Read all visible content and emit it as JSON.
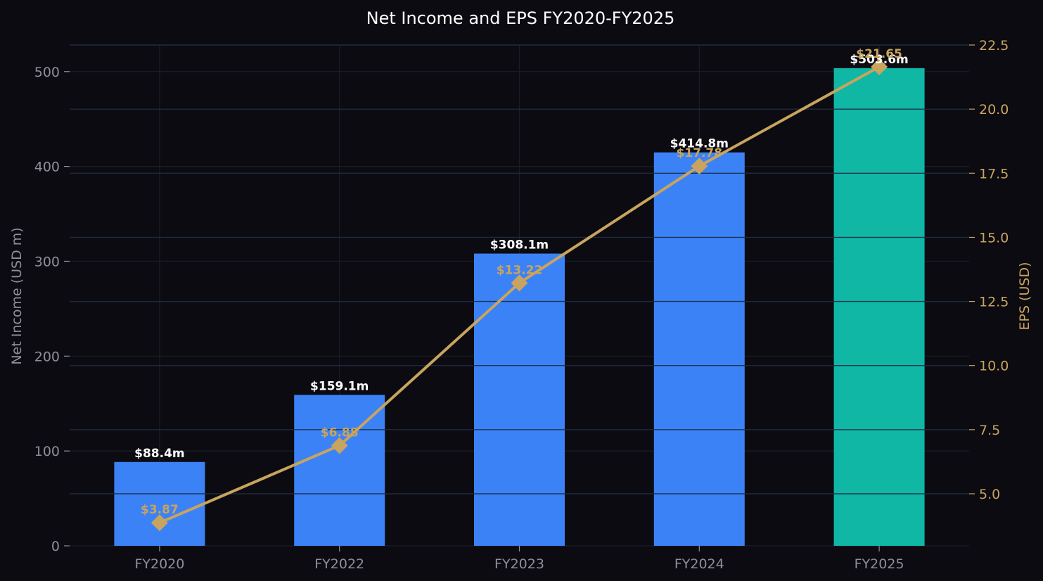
{
  "chart_data": {
    "type": "bar",
    "title": "Net Income and EPS FY2020-FY2025",
    "categories": [
      "FY2020",
      "FY2022",
      "FY2023",
      "FY2024",
      "FY2025"
    ],
    "series": [
      {
        "name": "",
        "axis": "left",
        "kind": "bar",
        "values": [
          88.4,
          159.1,
          308.1,
          414.8,
          503.6
        ],
        "labels": [
          "$88.4m",
          "$159.1m",
          "$308.1m",
          "$414.8m",
          "$503.6m"
        ]
      },
      {
        "name": "",
        "axis": "right",
        "kind": "line",
        "marker": "diamond",
        "values": [
          3.87,
          6.88,
          13.22,
          17.78,
          21.65
        ],
        "labels": [
          "$3.87",
          "$6.88",
          "$13.22",
          "$17.78",
          "$21.65"
        ]
      }
    ],
    "ylabel": "Net Income (USD m)",
    "y2label": "EPS (USD)",
    "ylim": [
      0,
      528
    ],
    "y2lim": [
      2.97,
      22.5
    ],
    "yticks": [
      0,
      100,
      200,
      300,
      400,
      500
    ],
    "y2ticks": [
      5.0,
      7.5,
      10.0,
      12.5,
      15.0,
      17.5,
      20.0,
      22.5
    ],
    "y2tick_labels": [
      "5.0",
      "7.5",
      "10.0",
      "12.5",
      "15.0",
      "17.5",
      "20.0",
      "22.5"
    ],
    "grid": true,
    "colors": {
      "background": "#0b0b11",
      "bar": "#3b82f6",
      "bar_highlight": "#10b7a5",
      "line": "#c8a45e",
      "grid": "#262633",
      "text": "#8f8f9a",
      "title": "#ffffff"
    }
  }
}
